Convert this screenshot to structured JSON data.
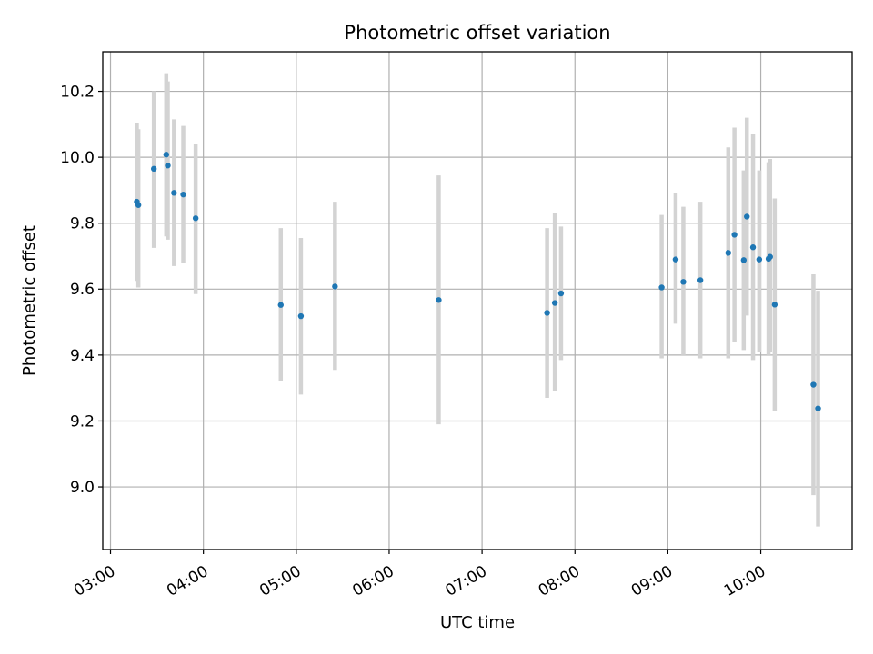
{
  "chart_data": {
    "type": "scatter",
    "title": "Photometric offset variation",
    "xlabel": "UTC time",
    "ylabel": "Photometric offset",
    "grid": true,
    "xlim": [
      "02:55",
      "10:59"
    ],
    "ylim": [
      8.81,
      10.32
    ],
    "x_ticks": [
      "03:00",
      "04:00",
      "05:00",
      "06:00",
      "07:00",
      "08:00",
      "09:00",
      "10:00"
    ],
    "y_ticks": [
      "9.0",
      "9.2",
      "9.4",
      "9.6",
      "9.8",
      "10.0",
      "10.2"
    ],
    "point_color": "#1f77b4",
    "errorbar_color": "#d3d3d3",
    "points": [
      {
        "x": "03:17",
        "y": 9.865,
        "lo": 9.625,
        "hi": 10.105
      },
      {
        "x": "03:18",
        "y": 9.855,
        "lo": 9.605,
        "hi": 10.085
      },
      {
        "x": "03:28",
        "y": 9.965,
        "lo": 9.725,
        "hi": 10.2
      },
      {
        "x": "03:36",
        "y": 10.008,
        "lo": 9.76,
        "hi": 10.255
      },
      {
        "x": "03:37",
        "y": 9.975,
        "lo": 9.75,
        "hi": 10.23
      },
      {
        "x": "03:41",
        "y": 9.892,
        "lo": 9.67,
        "hi": 10.115
      },
      {
        "x": "03:47",
        "y": 9.887,
        "lo": 9.68,
        "hi": 10.095
      },
      {
        "x": "03:55",
        "y": 9.815,
        "lo": 9.585,
        "hi": 10.04
      },
      {
        "x": "04:50",
        "y": 9.552,
        "lo": 9.32,
        "hi": 9.785
      },
      {
        "x": "05:03",
        "y": 9.518,
        "lo": 9.28,
        "hi": 9.755
      },
      {
        "x": "05:25",
        "y": 9.608,
        "lo": 9.355,
        "hi": 9.865
      },
      {
        "x": "06:32",
        "y": 9.567,
        "lo": 9.19,
        "hi": 9.945
      },
      {
        "x": "07:42",
        "y": 9.528,
        "lo": 9.27,
        "hi": 9.785
      },
      {
        "x": "07:47",
        "y": 9.558,
        "lo": 9.29,
        "hi": 9.83
      },
      {
        "x": "07:51",
        "y": 9.587,
        "lo": 9.385,
        "hi": 9.79
      },
      {
        "x": "08:56",
        "y": 9.605,
        "lo": 9.39,
        "hi": 9.825
      },
      {
        "x": "09:05",
        "y": 9.69,
        "lo": 9.495,
        "hi": 9.89
      },
      {
        "x": "09:10",
        "y": 9.622,
        "lo": 9.4,
        "hi": 9.85
      },
      {
        "x": "09:21",
        "y": 9.627,
        "lo": 9.39,
        "hi": 9.865
      },
      {
        "x": "09:39",
        "y": 9.71,
        "lo": 9.39,
        "hi": 10.03
      },
      {
        "x": "09:43",
        "y": 9.765,
        "lo": 9.44,
        "hi": 10.09
      },
      {
        "x": "09:49",
        "y": 9.688,
        "lo": 9.415,
        "hi": 9.96
      },
      {
        "x": "09:51",
        "y": 9.82,
        "lo": 9.52,
        "hi": 10.12
      },
      {
        "x": "09:55",
        "y": 9.727,
        "lo": 9.385,
        "hi": 10.07
      },
      {
        "x": "09:59",
        "y": 9.69,
        "lo": 9.41,
        "hi": 9.96
      },
      {
        "x": "10:05",
        "y": 9.692,
        "lo": 9.4,
        "hi": 9.985
      },
      {
        "x": "10:06",
        "y": 9.698,
        "lo": 9.41,
        "hi": 9.995
      },
      {
        "x": "10:09",
        "y": 9.553,
        "lo": 9.23,
        "hi": 9.875
      },
      {
        "x": "10:34",
        "y": 9.31,
        "lo": 8.975,
        "hi": 9.645
      },
      {
        "x": "10:37",
        "y": 9.238,
        "lo": 8.88,
        "hi": 9.595
      }
    ]
  }
}
